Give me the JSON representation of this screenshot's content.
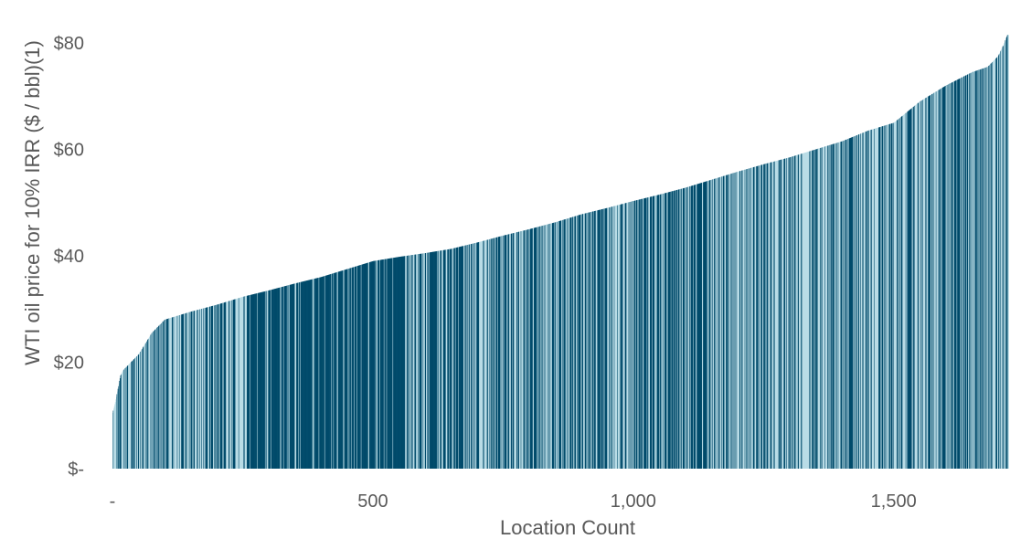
{
  "chart_data": {
    "type": "bar",
    "title": "",
    "xlabel": "Location Count",
    "ylabel": "WTI oil price for 10% IRR ($ / bbl)(1)",
    "x_range": [
      0,
      1720
    ],
    "ylim": [
      0,
      82
    ],
    "x_ticks": [
      {
        "value": 0,
        "label": "-"
      },
      {
        "value": 500,
        "label": "500"
      },
      {
        "value": 1000,
        "label": "1,000"
      },
      {
        "value": 1500,
        "label": "1,500"
      }
    ],
    "y_ticks": [
      {
        "value": 0,
        "label": "$-"
      },
      {
        "value": 20,
        "label": "$20"
      },
      {
        "value": 40,
        "label": "$40"
      },
      {
        "value": 60,
        "label": "$60"
      },
      {
        "value": 80,
        "label": "$80"
      }
    ],
    "grid": false,
    "legend": "none",
    "colors": {
      "bar_dark": "#004b6b",
      "bar_light": "#b9dce6",
      "text": "#595959"
    },
    "series": [
      {
        "x": [
          0,
          5,
          10,
          15,
          20,
          30,
          50,
          75,
          100,
          150,
          200,
          250,
          300,
          350,
          400,
          450,
          500,
          550,
          600,
          650,
          700,
          750,
          800,
          850,
          900,
          950,
          1000,
          1050,
          1100,
          1150,
          1200,
          1250,
          1300,
          1350,
          1400,
          1450,
          1500,
          1550,
          1600,
          1650,
          1680,
          1700,
          1710,
          1718
        ],
        "values": [
          10.5,
          12.5,
          15.0,
          17.5,
          18.5,
          19.5,
          21.5,
          25.5,
          28.0,
          29.5,
          30.8,
          32.3,
          33.5,
          34.8,
          36.0,
          37.5,
          39.0,
          39.8,
          40.5,
          41.3,
          42.5,
          43.8,
          45.0,
          46.3,
          47.8,
          49.0,
          50.3,
          51.5,
          52.8,
          54.3,
          55.8,
          57.2,
          58.5,
          60.0,
          61.5,
          63.5,
          65.0,
          69.0,
          72.0,
          74.5,
          75.5,
          77.5,
          79.5,
          81.5
        ]
      }
    ]
  }
}
